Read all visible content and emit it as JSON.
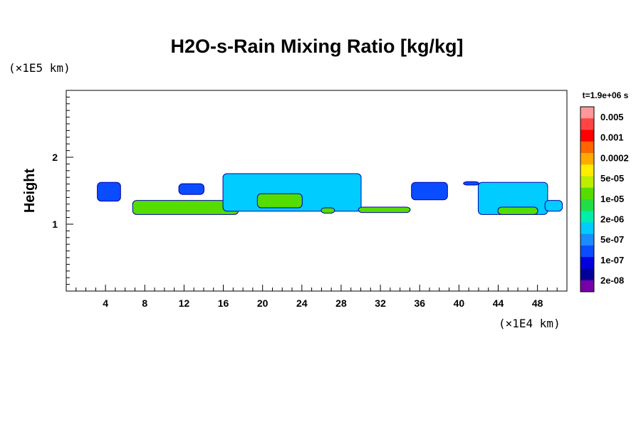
{
  "chart_data": {
    "type": "heatmap",
    "title": "H2O-s-Rain Mixing Ratio [kg/kg]",
    "xlabel": "",
    "x_unit": "(×1E4 km)",
    "ylabel": "Height",
    "y_unit": "(×1E5 km)",
    "time_label": "t=1.9e+06 s",
    "xlim": [
      0,
      51
    ],
    "ylim": [
      0,
      3
    ],
    "x_ticks": [
      4,
      8,
      12,
      16,
      20,
      24,
      28,
      32,
      36,
      40,
      44,
      48
    ],
    "y_ticks": [
      1,
      2
    ],
    "colorbar": {
      "colors": [
        "#ff9999",
        "#ff4444",
        "#ff0000",
        "#ff6600",
        "#ffaa00",
        "#ffee00",
        "#bbee00",
        "#55dd00",
        "#22dd44",
        "#00eeaa",
        "#00ccff",
        "#1a8cff",
        "#0a4cff",
        "#0000dd",
        "#000099",
        "#7700aa"
      ],
      "labels": [
        "0.005",
        "0.001",
        "0.0002",
        "5e-05",
        "1e-05",
        "2e-06",
        "5e-07",
        "1e-07",
        "2e-08"
      ]
    },
    "regions": [
      {
        "x": [
          3.2,
          5.5
        ],
        "y": [
          1.35,
          1.62
        ],
        "level": "1e-07"
      },
      {
        "x": [
          6.8,
          17.5
        ],
        "y": [
          1.15,
          1.35
        ],
        "level": "1e-05"
      },
      {
        "x": [
          11.5,
          14.0
        ],
        "y": [
          1.45,
          1.6
        ],
        "level": "1e-07"
      },
      {
        "x": [
          16.0,
          30.0
        ],
        "y": [
          1.2,
          1.75
        ],
        "level": "5e-07"
      },
      {
        "x": [
          19.5,
          24.0
        ],
        "y": [
          1.25,
          1.45
        ],
        "level": "1e-05"
      },
      {
        "x": [
          26.0,
          27.3
        ],
        "y": [
          1.17,
          1.24
        ],
        "level": "1e-05"
      },
      {
        "x": [
          29.8,
          35.0
        ],
        "y": [
          1.18,
          1.25
        ],
        "level": "1e-05"
      },
      {
        "x": [
          35.2,
          38.8
        ],
        "y": [
          1.37,
          1.62
        ],
        "level": "1e-07"
      },
      {
        "x": [
          40.5,
          42.0
        ],
        "y": [
          1.59,
          1.63
        ],
        "level": "1e-07"
      },
      {
        "x": [
          42.0,
          49.0
        ],
        "y": [
          1.15,
          1.62
        ],
        "level": "5e-07"
      },
      {
        "x": [
          44.0,
          48.0
        ],
        "y": [
          1.15,
          1.25
        ],
        "level": "1e-05"
      },
      {
        "x": [
          48.8,
          50.5
        ],
        "y": [
          1.2,
          1.35
        ],
        "level": "5e-07"
      }
    ]
  }
}
